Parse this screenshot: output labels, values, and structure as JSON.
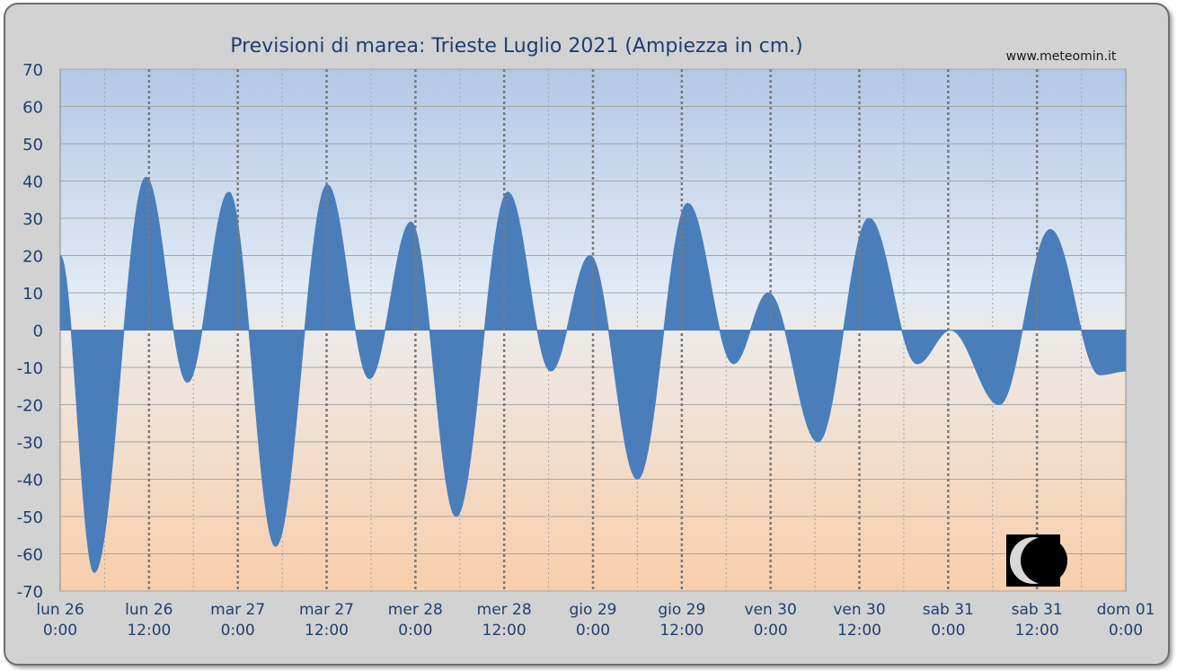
{
  "chart_data": {
    "type": "area",
    "title": "Previsioni di marea: Trieste Luglio 2021 (Ampiezza in cm.)",
    "source_label": "www.meteomin.it",
    "ylim": [
      -70,
      70
    ],
    "y_ticks": [
      70,
      60,
      50,
      40,
      30,
      20,
      10,
      0,
      -10,
      -20,
      -30,
      -40,
      -50,
      -60,
      -70
    ],
    "xlim_hours": [
      0,
      144
    ],
    "x_ticks": [
      {
        "day": "lun",
        "date": "26",
        "time": "0:00"
      },
      {
        "day": "lun",
        "date": "26",
        "time": "12:00"
      },
      {
        "day": "mar",
        "date": "27",
        "time": "0:00"
      },
      {
        "day": "mar",
        "date": "27",
        "time": "12:00"
      },
      {
        "day": "mer",
        "date": "28",
        "time": "0:00"
      },
      {
        "day": "mer",
        "date": "28",
        "time": "12:00"
      },
      {
        "day": "gio",
        "date": "29",
        "time": "0:00"
      },
      {
        "day": "gio",
        "date": "29",
        "time": "12:00"
      },
      {
        "day": "ven",
        "date": "30",
        "time": "0:00"
      },
      {
        "day": "ven",
        "date": "30",
        "time": "12:00"
      },
      {
        "day": "sab",
        "date": "31",
        "time": "0:00"
      },
      {
        "day": "sab",
        "date": "31",
        "time": "12:00"
      },
      {
        "day": "dom",
        "date": "01",
        "time": "0:00"
      }
    ],
    "grid": true,
    "series": [
      {
        "color": "#4a7ebb",
        "extrema": [
          {
            "hour": 0,
            "value": 20
          },
          {
            "hour": 4.6,
            "value": -65
          },
          {
            "hour": 11.6,
            "value": 41
          },
          {
            "hour": 17.2,
            "value": -14
          },
          {
            "hour": 22.8,
            "value": 37
          },
          {
            "hour": 29.1,
            "value": -58
          },
          {
            "hour": 36.1,
            "value": 39
          },
          {
            "hour": 41.8,
            "value": -13
          },
          {
            "hour": 47.4,
            "value": 29
          },
          {
            "hour": 53.5,
            "value": -50
          },
          {
            "hour": 60.5,
            "value": 37
          },
          {
            "hour": 66.3,
            "value": -11
          },
          {
            "hour": 71.6,
            "value": 20
          },
          {
            "hour": 78.0,
            "value": -40
          },
          {
            "hour": 84.8,
            "value": 34
          },
          {
            "hour": 91.0,
            "value": -9
          },
          {
            "hour": 95.7,
            "value": 10
          },
          {
            "hour": 102.4,
            "value": -30
          },
          {
            "hour": 109.3,
            "value": 30
          },
          {
            "hour": 115.8,
            "value": -9
          },
          {
            "hour": 120.3,
            "value": 0
          },
          {
            "hour": 126.9,
            "value": -20
          },
          {
            "hour": 133.8,
            "value": 27
          },
          {
            "hour": 140.5,
            "value": -12
          },
          {
            "hour": 144,
            "value": -11
          }
        ]
      }
    ],
    "moon_phase": "waning crescent"
  }
}
